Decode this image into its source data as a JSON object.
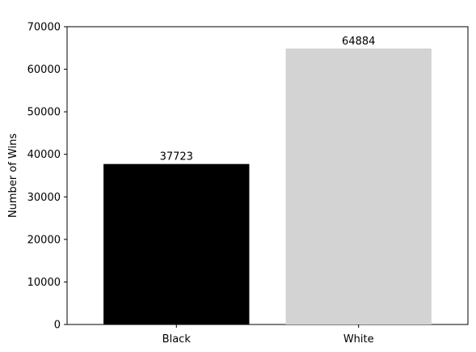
{
  "chart_data": {
    "type": "bar",
    "title": "",
    "xlabel": "",
    "ylabel": "Number of Wins",
    "categories": [
      "Black",
      "White"
    ],
    "values": [
      37723,
      64884
    ],
    "data_labels": [
      "37723",
      "64884"
    ],
    "bar_colors": [
      "#000000",
      "#d3d3d3"
    ],
    "ylim": [
      0,
      70000
    ],
    "yticks": [
      0,
      10000,
      20000,
      30000,
      40000,
      50000,
      60000,
      70000
    ],
    "ytick_labels": [
      "0",
      "10000",
      "20000",
      "30000",
      "40000",
      "50000",
      "60000",
      "70000"
    ],
    "grid": false,
    "legend": "none"
  }
}
